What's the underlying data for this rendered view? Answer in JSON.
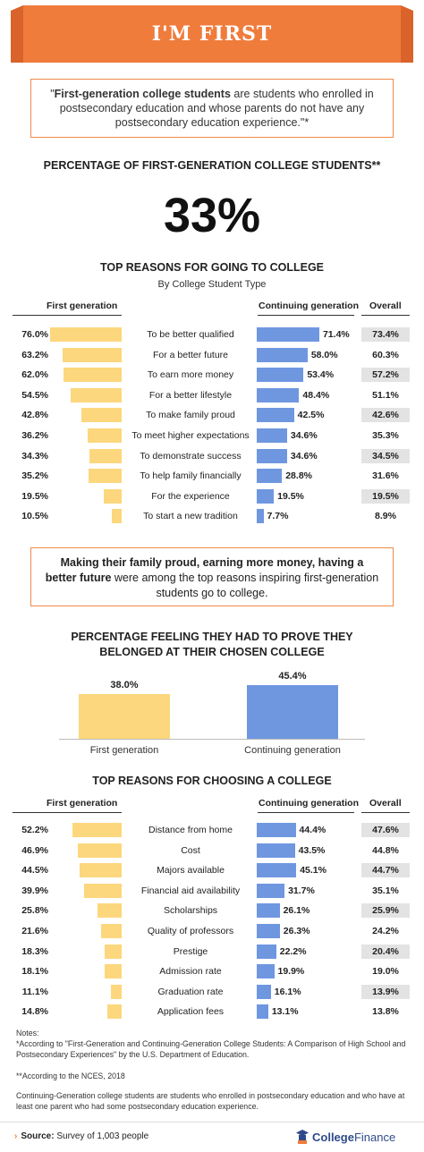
{
  "banner": {
    "title": "I'M FIRST",
    "color": "#f07c3c"
  },
  "definition": {
    "open": "\"",
    "bold": "First-generation college students",
    "rest": " are students who enrolled in postsecondary education and whose parents do not have any postsecondary education experience.",
    "close": "\"*"
  },
  "stat": {
    "heading": "PERCENTAGE OF FIRST-GENERATION COLLEGE STUDENTS**",
    "value": "33%"
  },
  "chart_data": [
    {
      "type": "bar",
      "title": "TOP REASONS FOR GOING TO COLLEGE",
      "subtitle": "By College Student Type",
      "columns": {
        "first": "First generation",
        "continuing": "Continuing generation",
        "overall": "Overall"
      },
      "categories": [
        "To be better qualified",
        "For a better future",
        "To earn more money",
        "For a better lifestyle",
        "To make family proud",
        "To meet higher expectations",
        "To demonstrate success",
        "To help family financially",
        "For the experience",
        "To start a new tradition"
      ],
      "series": [
        {
          "name": "First generation",
          "values": [
            76.0,
            63.2,
            62.0,
            54.5,
            42.8,
            36.2,
            34.3,
            35.2,
            19.5,
            10.5
          ],
          "labels": [
            "76.0%",
            "63.2%",
            "62.0%",
            "54.5%",
            "42.8%",
            "36.2%",
            "34.3%",
            "35.2%",
            "19.5%",
            "10.5%"
          ]
        },
        {
          "name": "Continuing generation",
          "values": [
            71.4,
            58.0,
            53.4,
            48.4,
            42.5,
            34.6,
            34.6,
            28.8,
            19.5,
            7.7
          ],
          "labels": [
            "71.4%",
            "58.0%",
            "53.4%",
            "48.4%",
            "42.5%",
            "34.6%",
            "34.6%",
            "28.8%",
            "19.5%",
            "7.7%"
          ]
        },
        {
          "name": "Overall",
          "values": [
            73.4,
            60.3,
            57.2,
            51.1,
            42.6,
            35.3,
            34.5,
            31.6,
            19.5,
            8.9
          ],
          "labels": [
            "73.4%",
            "60.3%",
            "57.2%",
            "51.1%",
            "42.6%",
            "35.3%",
            "34.5%",
            "31.6%",
            "19.5%",
            "8.9%"
          ]
        }
      ]
    },
    {
      "type": "bar",
      "title": "PERCENTAGE FEELING THEY HAD TO PROVE THEY BELONGED AT THEIR CHOSEN COLLEGE",
      "categories": [
        "First generation",
        "Continuing generation"
      ],
      "values": [
        38.0,
        45.4
      ],
      "labels": [
        "38.0%",
        "45.4%"
      ]
    },
    {
      "type": "bar",
      "title": "TOP REASONS FOR CHOOSING A COLLEGE",
      "columns": {
        "first": "First generation",
        "continuing": "Continuing generation",
        "overall": "Overall"
      },
      "categories": [
        "Distance from home",
        "Cost",
        "Majors available",
        "Financial aid availability",
        "Scholarships",
        "Quality of professors",
        "Prestige",
        "Admission rate",
        "Graduation rate",
        "Application fees"
      ],
      "series": [
        {
          "name": "First generation",
          "values": [
            52.2,
            46.9,
            44.5,
            39.9,
            25.8,
            21.6,
            18.3,
            18.1,
            11.1,
            14.8
          ],
          "labels": [
            "52.2%",
            "46.9%",
            "44.5%",
            "39.9%",
            "25.8%",
            "21.6%",
            "18.3%",
            "18.1%",
            "11.1%",
            "14.8%"
          ]
        },
        {
          "name": "Continuing generation",
          "values": [
            44.4,
            43.5,
            45.1,
            31.7,
            26.1,
            26.3,
            22.2,
            19.9,
            16.1,
            13.1
          ],
          "labels": [
            "44.4%",
            "43.5%",
            "45.1%",
            "31.7%",
            "26.1%",
            "26.3%",
            "22.2%",
            "19.9%",
            "16.1%",
            "13.1%"
          ]
        },
        {
          "name": "Overall",
          "values": [
            47.6,
            44.8,
            44.7,
            35.1,
            25.9,
            24.2,
            20.4,
            19.0,
            13.9,
            13.8
          ],
          "labels": [
            "47.6%",
            "44.8%",
            "44.7%",
            "35.1%",
            "25.9%",
            "24.2%",
            "20.4%",
            "19.0%",
            "13.9%",
            "13.8%"
          ]
        }
      ]
    }
  ],
  "callout": {
    "bold": "Making their family proud, earning more money, having a better future",
    "rest": " were among the top reasons inspiring first-generation students go to college."
  },
  "notes": {
    "label": "Notes:",
    "n1": "*According to \"First-Generation and Continuing-Generation College Students: A Comparison of High School and Postsecondary Experiences\" by the U.S. Department of Education.",
    "n2": "**According to the NCES, 2018",
    "n3": "Continuing-Generation college students are students who enrolled in postsecondary education and who have at least one parent who had some postsecondary education experience."
  },
  "footer": {
    "source_label": "Source:",
    "source_text": " Survey of 1,003 people",
    "logo_a": "College",
    "logo_b": "Finance"
  },
  "colors": {
    "first": "#fdd77d",
    "continuing": "#6f97e0",
    "accent": "#f07c3c",
    "overall_shade": "#e3e3e3"
  }
}
